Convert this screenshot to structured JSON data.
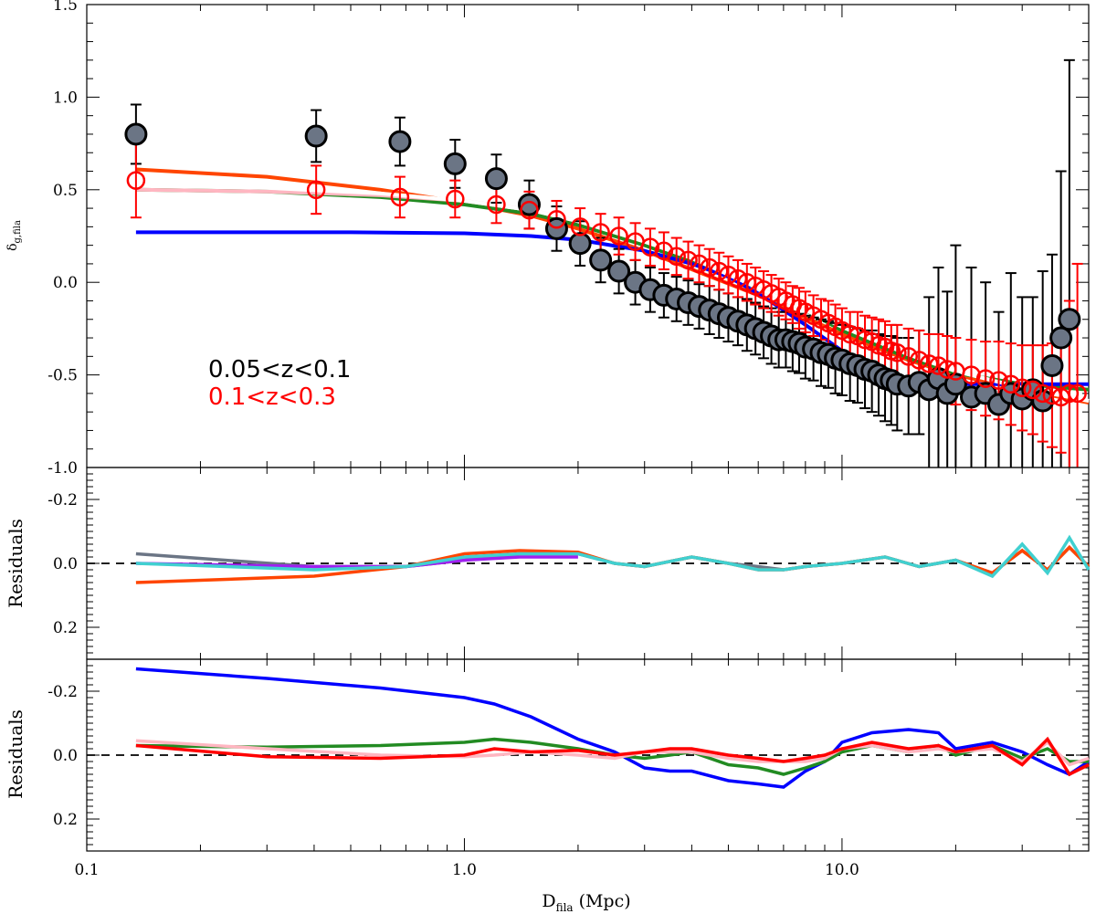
{
  "chart_data": [
    {
      "type": "scatter",
      "panel": "main",
      "xscale": "log",
      "xlim": [
        0.1,
        45
      ],
      "ylim": [
        -1.0,
        1.5
      ],
      "ylabel": "δg,fila",
      "ylabel_main": "δ",
      "ylabel_sub": "g,fila",
      "yticks": [
        "-1.0",
        "-0.5",
        "0.0",
        "0.5",
        "1.0",
        "1.5"
      ],
      "legend": [
        {
          "label": "0.05<z<0.1",
          "color": "#000000"
        },
        {
          "label": "0.1<z<0.3",
          "color": "#ff0000"
        }
      ],
      "series": [
        {
          "name": "0.05<z<0.1",
          "marker": "filled-circle",
          "fill": "#6b7585",
          "edge": "#000000",
          "x": [
            0.135,
            0.405,
            0.675,
            0.945,
            1.215,
            1.485,
            1.755,
            2.025,
            2.295,
            2.565,
            2.835,
            3.105,
            3.375,
            3.645,
            3.915,
            4.185,
            4.455,
            4.725,
            5.0,
            5.3,
            5.6,
            5.9,
            6.2,
            6.5,
            6.8,
            7.1,
            7.4,
            7.7,
            8.0,
            8.4,
            8.8,
            9.2,
            9.6,
            10.0,
            10.5,
            11.0,
            11.5,
            12.0,
            12.5,
            13.0,
            13.5,
            14.0,
            15.0,
            16.0,
            17.0,
            18.0,
            19.0,
            20.0,
            22.0,
            24.0,
            26.0,
            28.0,
            30.0,
            32.0,
            34.0,
            36.0,
            38.0,
            40.0
          ],
          "y": [
            0.8,
            0.79,
            0.76,
            0.64,
            0.56,
            0.42,
            0.29,
            0.21,
            0.12,
            0.06,
            0.0,
            -0.04,
            -0.07,
            -0.09,
            -0.11,
            -0.13,
            -0.15,
            -0.17,
            -0.19,
            -0.21,
            -0.23,
            -0.25,
            -0.27,
            -0.29,
            -0.31,
            -0.31,
            -0.32,
            -0.33,
            -0.35,
            -0.36,
            -0.38,
            -0.39,
            -0.41,
            -0.42,
            -0.44,
            -0.45,
            -0.47,
            -0.48,
            -0.5,
            -0.52,
            -0.53,
            -0.55,
            -0.56,
            -0.54,
            -0.58,
            -0.52,
            -0.6,
            -0.55,
            -0.62,
            -0.6,
            -0.66,
            -0.6,
            -0.63,
            -0.58,
            -0.64,
            -0.45,
            -0.3,
            -0.2
          ],
          "err": [
            0.16,
            0.14,
            0.13,
            0.13,
            0.13,
            0.13,
            0.12,
            0.12,
            0.12,
            0.12,
            0.12,
            0.12,
            0.12,
            0.12,
            0.12,
            0.12,
            0.13,
            0.13,
            0.13,
            0.13,
            0.14,
            0.14,
            0.14,
            0.15,
            0.15,
            0.15,
            0.16,
            0.16,
            0.17,
            0.17,
            0.18,
            0.18,
            0.19,
            0.19,
            0.2,
            0.2,
            0.21,
            0.22,
            0.22,
            0.23,
            0.24,
            0.25,
            0.26,
            0.28,
            0.5,
            0.6,
            0.55,
            0.75,
            0.7,
            0.6,
            0.5,
            0.65,
            0.55,
            0.5,
            0.7,
            0.6,
            0.9,
            1.4
          ]
        },
        {
          "name": "0.1<z<0.3",
          "marker": "open-circle",
          "edge": "#ff0000",
          "x": [
            0.135,
            0.405,
            0.675,
            0.945,
            1.215,
            1.485,
            1.755,
            2.025,
            2.295,
            2.565,
            2.835,
            3.105,
            3.375,
            3.645,
            3.915,
            4.185,
            4.455,
            4.725,
            5.0,
            5.3,
            5.6,
            5.9,
            6.2,
            6.5,
            6.8,
            7.1,
            7.4,
            7.7,
            8.0,
            8.4,
            8.8,
            9.2,
            9.6,
            10.0,
            10.5,
            11.0,
            11.5,
            12.0,
            12.5,
            13.0,
            13.5,
            14.0,
            15.0,
            16.0,
            17.0,
            18.0,
            19.0,
            20.0,
            22.0,
            24.0,
            26.0,
            28.0,
            30.0,
            32.0,
            34.0,
            36.0,
            38.0,
            40.0,
            42.0
          ],
          "y": [
            0.55,
            0.5,
            0.46,
            0.45,
            0.42,
            0.39,
            0.34,
            0.3,
            0.27,
            0.25,
            0.22,
            0.19,
            0.17,
            0.14,
            0.12,
            0.1,
            0.08,
            0.06,
            0.04,
            0.02,
            0.0,
            -0.02,
            -0.04,
            -0.06,
            -0.08,
            -0.1,
            -0.12,
            -0.14,
            -0.16,
            -0.18,
            -0.2,
            -0.22,
            -0.24,
            -0.26,
            -0.28,
            -0.29,
            -0.31,
            -0.32,
            -0.34,
            -0.35,
            -0.37,
            -0.38,
            -0.4,
            -0.42,
            -0.44,
            -0.45,
            -0.47,
            -0.48,
            -0.5,
            -0.52,
            -0.53,
            -0.55,
            -0.57,
            -0.58,
            -0.6,
            -0.61,
            -0.62,
            -0.6,
            -0.6
          ],
          "err": [
            0.2,
            0.13,
            0.11,
            0.1,
            0.1,
            0.1,
            0.1,
            0.1,
            0.1,
            0.1,
            0.1,
            0.1,
            0.1,
            0.1,
            0.1,
            0.1,
            0.1,
            0.1,
            0.1,
            0.1,
            0.1,
            0.1,
            0.1,
            0.1,
            0.1,
            0.1,
            0.1,
            0.11,
            0.11,
            0.11,
            0.11,
            0.12,
            0.12,
            0.12,
            0.12,
            0.13,
            0.13,
            0.13,
            0.14,
            0.14,
            0.14,
            0.15,
            0.15,
            0.16,
            0.16,
            0.17,
            0.18,
            0.18,
            0.19,
            0.2,
            0.21,
            0.22,
            0.23,
            0.24,
            0.26,
            0.28,
            0.3,
            0.5,
            0.7
          ]
        }
      ],
      "fit_curves": [
        {
          "name": "orange-fit",
          "color": "#ff4500",
          "x": [
            0.135,
            0.3,
            0.6,
            1.0,
            1.5,
            2.0,
            3.0,
            4.0,
            6.0,
            8.0,
            10.0,
            15.0,
            20.0,
            30.0,
            45.0
          ],
          "y": [
            0.61,
            0.57,
            0.5,
            0.43,
            0.36,
            0.29,
            0.17,
            0.07,
            -0.07,
            -0.19,
            -0.28,
            -0.42,
            -0.5,
            -0.58,
            -0.65
          ]
        },
        {
          "name": "green-fit",
          "color": "#228b22",
          "x": [
            0.135,
            0.3,
            0.6,
            1.0,
            1.5,
            2.0,
            3.0,
            4.0,
            6.0,
            8.0,
            10.0,
            15.0,
            20.0,
            30.0,
            45.0
          ],
          "y": [
            0.5,
            0.49,
            0.46,
            0.42,
            0.37,
            0.31,
            0.2,
            0.11,
            -0.03,
            -0.15,
            -0.26,
            -0.41,
            -0.49,
            -0.55,
            -0.58
          ]
        },
        {
          "name": "blue-fit",
          "color": "#0000ff",
          "x": [
            0.135,
            0.5,
            1.0,
            1.5,
            2.0,
            3.0,
            4.0,
            5.0,
            6.0,
            7.0,
            8.0,
            10.0,
            12.0,
            15.0,
            20.0,
            30.0,
            45.0
          ],
          "y": [
            0.27,
            0.27,
            0.265,
            0.25,
            0.23,
            0.17,
            0.1,
            0.03,
            -0.06,
            -0.15,
            -0.23,
            -0.37,
            -0.46,
            -0.52,
            -0.55,
            -0.55,
            -0.55
          ]
        },
        {
          "name": "pink-fit",
          "color": "#ffb6c1",
          "x": [
            0.135,
            0.3,
            0.6,
            1.0,
            1.5,
            2.0,
            3.0,
            4.0,
            6.0,
            8.0,
            10.0,
            15.0,
            20.0,
            30.0,
            45.0
          ],
          "y": [
            0.5,
            0.49,
            0.47,
            0.44,
            0.39,
            0.33,
            0.22,
            0.13,
            -0.03,
            -0.15,
            -0.24,
            -0.39,
            -0.48,
            -0.57,
            -0.64
          ]
        },
        {
          "name": "white-fit",
          "color": "#ffffff",
          "x": [
            0.135,
            0.3,
            0.6,
            1.0,
            1.5,
            2.0,
            3.0,
            4.0,
            6.0,
            8.0,
            10.0,
            15.0,
            20.0,
            30.0,
            45.0
          ],
          "y": [
            0.53,
            0.51,
            0.48,
            0.44,
            0.39,
            0.33,
            0.22,
            0.13,
            -0.03,
            -0.15,
            -0.24,
            -0.39,
            -0.48,
            -0.57,
            -0.64
          ]
        }
      ]
    },
    {
      "type": "line",
      "panel": "residuals-top",
      "xscale": "log",
      "ylim": [
        0.3,
        -0.3
      ],
      "ylabel": "Residuals",
      "yticks": [
        "-0.2",
        "0.0",
        "0.2"
      ],
      "reference_line": 0.0,
      "series": [
        {
          "name": "slate-residual",
          "color": "#6b7585",
          "x": [
            0.135,
            0.4,
            0.7,
            1.0,
            1.4,
            2.0,
            2.5,
            3.0,
            4.0,
            5.0,
            6.0,
            7.0,
            8.0,
            10.0,
            13.0,
            16.0,
            20.0,
            25.0,
            30.0,
            35.0,
            40.0,
            45.0
          ],
          "y": [
            -0.03,
            0.01,
            0.01,
            -0.01,
            -0.03,
            -0.03,
            0.0,
            0.01,
            -0.02,
            0.0,
            0.01,
            0.02,
            0.01,
            0.0,
            -0.02,
            0.01,
            -0.01,
            0.03,
            -0.04,
            0.02,
            -0.05,
            0.01
          ]
        },
        {
          "name": "orange-residual",
          "color": "#ff4500",
          "x": [
            0.135,
            0.4,
            0.7,
            1.0,
            1.4,
            2.0,
            2.5,
            3.0,
            4.0,
            5.0,
            6.0,
            7.0,
            8.0,
            10.0,
            13.0,
            16.0,
            20.0,
            25.0,
            30.0,
            35.0,
            40.0,
            45.0
          ],
          "y": [
            0.06,
            0.04,
            0.01,
            -0.03,
            -0.04,
            -0.035,
            0.0,
            0.01,
            -0.02,
            0.0,
            0.02,
            0.02,
            0.01,
            0.0,
            -0.02,
            0.01,
            -0.01,
            0.03,
            -0.04,
            0.02,
            -0.05,
            0.01
          ]
        },
        {
          "name": "violet-residual",
          "color": "#a020f0",
          "x": [
            0.135,
            0.4,
            0.7,
            1.0,
            1.4,
            2.0
          ],
          "y": [
            0.0,
            0.01,
            0.01,
            -0.01,
            -0.02,
            -0.02
          ]
        },
        {
          "name": "cyan-residual",
          "color": "#40d0d0",
          "x": [
            0.135,
            0.4,
            0.7,
            1.0,
            1.4,
            2.0,
            2.5,
            3.0,
            4.0,
            5.0,
            6.0,
            7.0,
            8.0,
            10.0,
            13.0,
            16.0,
            20.0,
            25.0,
            30.0,
            35.0,
            40.0,
            45.0
          ],
          "y": [
            0.0,
            0.02,
            0.01,
            -0.02,
            -0.03,
            -0.03,
            0.0,
            0.01,
            -0.02,
            0.0,
            0.02,
            0.02,
            0.01,
            0.0,
            -0.02,
            0.01,
            -0.01,
            0.04,
            -0.06,
            0.03,
            -0.08,
            0.02
          ]
        }
      ]
    },
    {
      "type": "line",
      "panel": "residuals-bottom",
      "xscale": "log",
      "ylim": [
        0.3,
        -0.3
      ],
      "ylabel": "Residuals",
      "xlabel": "Dfila (Mpc)",
      "xlabel_main": "D",
      "xlabel_sub": "fila",
      "xlabel_unit": "(Mpc)",
      "xticks": [
        "0.1",
        "1.0",
        "10.0"
      ],
      "yticks": [
        "-0.2",
        "0.0",
        "0.2"
      ],
      "reference_line": 0.0,
      "series": [
        {
          "name": "blue-residual",
          "color": "#0000ff",
          "x": [
            0.135,
            0.3,
            0.6,
            1.0,
            1.2,
            1.5,
            2.0,
            2.5,
            3.0,
            3.5,
            4.0,
            5.0,
            6.0,
            7.0,
            8.0,
            9.0,
            10.0,
            12.0,
            15.0,
            18.0,
            20.0,
            25.0,
            30.0,
            35.0,
            40.0,
            45.0
          ],
          "y": [
            -0.27,
            -0.24,
            -0.21,
            -0.18,
            -0.16,
            -0.12,
            -0.05,
            -0.01,
            0.04,
            0.05,
            0.05,
            0.08,
            0.09,
            0.1,
            0.05,
            0.02,
            -0.04,
            -0.07,
            -0.08,
            -0.07,
            -0.02,
            -0.04,
            -0.01,
            0.03,
            0.06,
            0.02
          ]
        },
        {
          "name": "green-residual",
          "color": "#228b22",
          "x": [
            0.135,
            0.3,
            0.6,
            1.0,
            1.2,
            1.5,
            2.0,
            2.5,
            3.0,
            3.5,
            4.0,
            5.0,
            6.0,
            7.0,
            8.0,
            9.0,
            10.0,
            12.0,
            15.0,
            18.0,
            20.0,
            25.0,
            30.0,
            35.0,
            40.0,
            45.0
          ],
          "y": [
            -0.03,
            -0.025,
            -0.03,
            -0.04,
            -0.05,
            -0.04,
            -0.02,
            0.0,
            0.01,
            0.0,
            -0.01,
            0.03,
            0.04,
            0.06,
            0.04,
            0.02,
            -0.01,
            -0.03,
            -0.01,
            -0.03,
            0.0,
            -0.03,
            0.01,
            -0.02,
            0.02,
            0.02
          ]
        },
        {
          "name": "pink-residual",
          "color": "#ffb6c1",
          "x": [
            0.135,
            0.3,
            0.6,
            1.0,
            1.2,
            1.5,
            2.0,
            2.5,
            3.0,
            3.5,
            4.0,
            5.0,
            6.0,
            7.0,
            8.0,
            9.0,
            10.0,
            12.0,
            15.0,
            18.0,
            20.0,
            25.0,
            30.0,
            35.0,
            40.0,
            45.0
          ],
          "y": [
            -0.045,
            -0.02,
            0.0,
            0.005,
            0.0,
            -0.01,
            0.0,
            0.01,
            -0.01,
            -0.01,
            -0.01,
            0.01,
            0.02,
            0.02,
            0.02,
            0.01,
            -0.02,
            -0.03,
            -0.01,
            -0.02,
            -0.01,
            -0.02,
            0.02,
            -0.04,
            0.03,
            0.01
          ]
        },
        {
          "name": "red-residual",
          "color": "#ff0000",
          "x": [
            0.135,
            0.3,
            0.6,
            1.0,
            1.2,
            1.5,
            2.0,
            2.5,
            3.0,
            3.5,
            4.0,
            5.0,
            6.0,
            7.0,
            8.0,
            9.0,
            10.0,
            12.0,
            15.0,
            18.0,
            20.0,
            25.0,
            30.0,
            35.0,
            40.0,
            45.0
          ],
          "y": [
            -0.03,
            0.005,
            0.01,
            0.0,
            -0.02,
            -0.01,
            -0.015,
            0.0,
            -0.01,
            -0.02,
            -0.02,
            0.0,
            0.01,
            0.02,
            0.01,
            0.0,
            -0.02,
            -0.04,
            -0.02,
            -0.03,
            -0.01,
            -0.03,
            0.03,
            -0.05,
            0.06,
            0.03
          ]
        }
      ]
    }
  ]
}
